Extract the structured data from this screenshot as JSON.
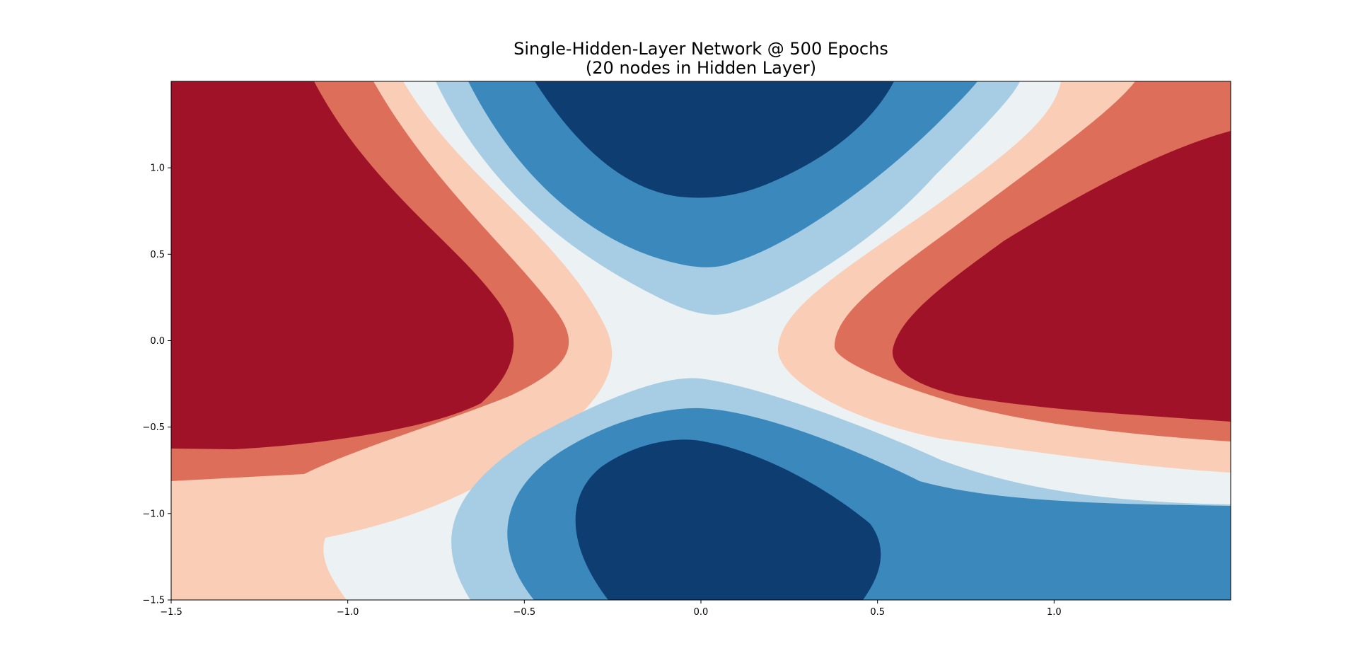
{
  "chart_data": {
    "type": "filled-contour",
    "title": "Single-Hidden-Layer Network @ 500 Epochs",
    "subtitle": "(20 nodes in Hidden Layer)",
    "xlabel": "",
    "ylabel": "",
    "xlim": [
      -1.5,
      1.5
    ],
    "ylim": [
      -1.5,
      1.5
    ],
    "x_ticks": [
      -1.5,
      -1.0,
      -0.5,
      0.0,
      0.5,
      1.0
    ],
    "y_ticks": [
      -1.5,
      -1.0,
      -0.5,
      0.0,
      0.5,
      1.0
    ],
    "x_tick_labels": [
      "−1.5",
      "−1.0",
      "−0.5",
      "0.0",
      "0.5",
      "1.0"
    ],
    "y_tick_labels": [
      "−1.5",
      "−1.0",
      "−0.5",
      "0.0",
      "0.5",
      "1.0"
    ],
    "grid": false,
    "colormap": "RdBu",
    "levels": [
      {
        "band": 1,
        "color": "#a01228"
      },
      {
        "band": 2,
        "color": "#dd6f5a"
      },
      {
        "band": 3,
        "color": "#f9cdb6"
      },
      {
        "band": 4,
        "color": "#ecf1f4"
      },
      {
        "band": 5,
        "color": "#a6cde3"
      },
      {
        "band": 6,
        "color": "#3b88bd"
      },
      {
        "band": 7,
        "color": "#0d3d71"
      }
    ],
    "regions": [
      {
        "name": "upper-left-red-lobe",
        "band": 1,
        "boundary": [
          [
            -1.5,
            1.5
          ],
          [
            -1.1,
            1.5
          ],
          [
            -0.88,
            1.12
          ],
          [
            -0.62,
            0.66
          ],
          [
            -0.5,
            0.3
          ],
          [
            -0.53,
            -0.1
          ],
          [
            -0.58,
            -0.4
          ],
          [
            -0.85,
            -0.55
          ],
          [
            -1.18,
            -0.62
          ],
          [
            -1.5,
            -0.62
          ]
        ]
      },
      {
        "name": "lower-center-navy-lobe",
        "band": 7,
        "boundary": [
          [
            -0.26,
            -1.5
          ],
          [
            -0.35,
            -1.0
          ],
          [
            -0.2,
            -0.6
          ],
          [
            0.0,
            -0.57
          ],
          [
            0.35,
            -0.8
          ],
          [
            0.52,
            -1.2
          ],
          [
            0.46,
            -1.5
          ]
        ]
      }
    ]
  },
  "colors": {
    "background": "#ffffff",
    "axis": "#000000"
  }
}
